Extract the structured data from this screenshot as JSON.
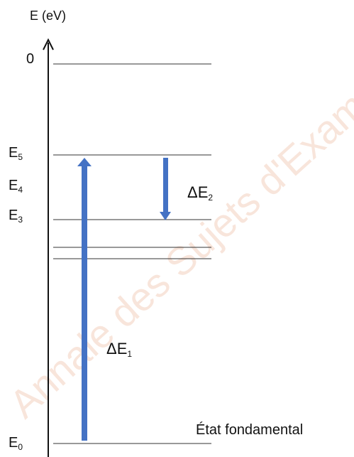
{
  "axis": {
    "label": "E (eV)"
  },
  "levels": {
    "zero": "0",
    "e5": {
      "letter": "E",
      "index": "5"
    },
    "e4": {
      "letter": "E",
      "index": "4"
    },
    "e3": {
      "letter": "E",
      "index": "3"
    },
    "e0": {
      "letter": "E",
      "index": "0"
    }
  },
  "transitions": {
    "de1": {
      "prefix": "ΔE",
      "index": "1"
    },
    "de2": {
      "prefix": "ΔE",
      "index": "2"
    }
  },
  "ground_state_label": "État fondamental",
  "watermark": "Annale des Sujets d'Examens",
  "colors": {
    "arrow": "#4472c4",
    "line": "#333333",
    "watermark": "#f2d0be"
  }
}
